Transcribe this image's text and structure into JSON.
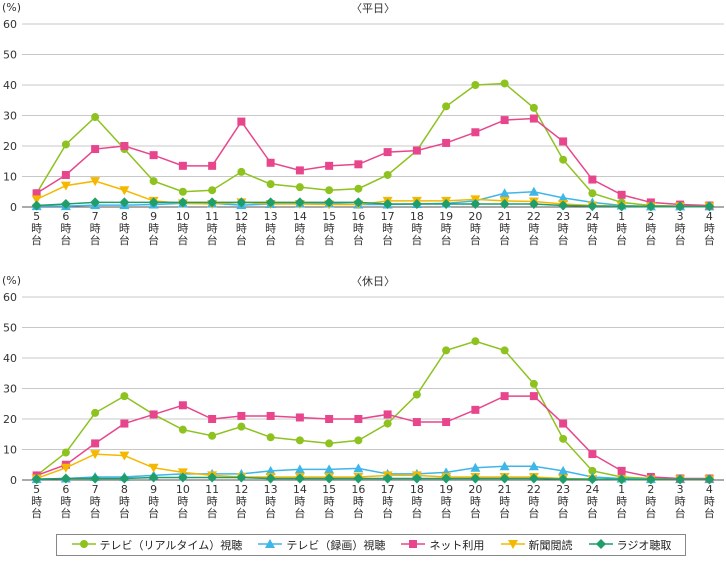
{
  "chart_data": [
    {
      "type": "line",
      "title": "〈平日〉",
      "ylabel": "(%)",
      "ylim": [
        0,
        60
      ],
      "yticks": [
        0,
        10,
        20,
        30,
        40,
        50,
        60
      ],
      "grid": true,
      "categories": [
        "5\n時\n台",
        "6\n時\n台",
        "7\n時\n台",
        "8\n時\n台",
        "9\n時\n台",
        "10\n時\n台",
        "11\n時\n台",
        "12\n時\n台",
        "13\n時\n台",
        "14\n時\n台",
        "15\n時\n台",
        "16\n時\n台",
        "17\n時\n台",
        "18\n時\n台",
        "19\n時\n台",
        "20\n時\n台",
        "21\n時\n台",
        "22\n時\n台",
        "23\n時\n台",
        "24\n時\n台",
        "1\n時\n台",
        "2\n時\n台",
        "3\n時\n台",
        "4\n時\n台"
      ],
      "series": [
        {
          "name": "テレビ（リアルタイム）視聴",
          "values": [
            4.5,
            20.5,
            29.5,
            19,
            8.5,
            5,
            5.5,
            11.5,
            7.5,
            6.5,
            5.5,
            6,
            10.5,
            18.5,
            33,
            40,
            40.5,
            32.5,
            15.5,
            4.5,
            1.5,
            0.5,
            0.3,
            0.3
          ]
        },
        {
          "name": "テレビ（録画）視聴",
          "values": [
            0.3,
            0.3,
            0.6,
            0.6,
            0.8,
            1.2,
            1.2,
            0.6,
            1,
            1.2,
            1.2,
            0.8,
            0.8,
            1,
            1.2,
            2,
            4.5,
            5,
            3,
            1.5,
            0.5,
            0.2,
            0.2,
            0.2
          ]
        },
        {
          "name": "ネット利用",
          "values": [
            4.5,
            10.5,
            19,
            20,
            17,
            13.5,
            13.5,
            28,
            14.5,
            12,
            13.5,
            14,
            18,
            18.5,
            21,
            24.5,
            28.5,
            29,
            21.5,
            9,
            4,
            1.5,
            0.8,
            0.5
          ]
        },
        {
          "name": "新聞閲読",
          "values": [
            2.5,
            7,
            8.5,
            5.5,
            2,
            1.2,
            1,
            1.5,
            1,
            1,
            0.8,
            0.8,
            2,
            2,
            2,
            2.5,
            2,
            1.8,
            1,
            0.5,
            0.3,
            0.2,
            0.2,
            0.2
          ]
        },
        {
          "name": "ラジオ聴取",
          "values": [
            0.5,
            1,
            1.5,
            1.5,
            1.5,
            1.5,
            1.5,
            1.5,
            1.5,
            1.5,
            1.5,
            1.5,
            1,
            1,
            1,
            1,
            1,
            1,
            0.5,
            0.3,
            0.2,
            0.2,
            0.2,
            0.2
          ]
        }
      ]
    },
    {
      "type": "line",
      "title": "〈休日〉",
      "ylabel": "(%)",
      "ylim": [
        0,
        60
      ],
      "yticks": [
        0,
        10,
        20,
        30,
        40,
        50,
        60
      ],
      "grid": true,
      "categories": [
        "5\n時\n台",
        "6\n時\n台",
        "7\n時\n台",
        "8\n時\n台",
        "9\n時\n台",
        "10\n時\n台",
        "11\n時\n台",
        "12\n時\n台",
        "13\n時\n台",
        "14\n時\n台",
        "15\n時\n台",
        "16\n時\n台",
        "17\n時\n台",
        "18\n時\n台",
        "19\n時\n台",
        "20\n時\n台",
        "21\n時\n台",
        "22\n時\n台",
        "23\n時\n台",
        "24\n時\n台",
        "1\n時\n台",
        "2\n時\n台",
        "3\n時\n台",
        "4\n時\n台"
      ],
      "series": [
        {
          "name": "テレビ（リアルタイム）視聴",
          "values": [
            1.5,
            9,
            22,
            27.5,
            21.5,
            16.5,
            14.5,
            17.5,
            14,
            13,
            12,
            13,
            18.5,
            28,
            42.5,
            45.5,
            42.5,
            31.5,
            13.5,
            3,
            1,
            0.5,
            0.3,
            0.3
          ]
        },
        {
          "name": "テレビ（録画）視聴",
          "values": [
            0.3,
            0.5,
            1,
            1,
            1.5,
            2,
            2,
            2,
            3,
            3.5,
            3.5,
            3.8,
            2,
            2,
            2.5,
            4,
            4.5,
            4.5,
            3,
            1,
            0.5,
            0.3,
            0.3,
            0.3
          ]
        },
        {
          "name": "ネット利用",
          "values": [
            1.5,
            5,
            12,
            18.5,
            21.5,
            24.5,
            20,
            21,
            21,
            20.5,
            20,
            20,
            21.5,
            19,
            19,
            23,
            27.5,
            27.5,
            18.5,
            8.5,
            3,
            1,
            0.5,
            0.5
          ]
        },
        {
          "name": "新聞閲読",
          "values": [
            0.5,
            4,
            8.5,
            8,
            4,
            2.5,
            1.5,
            1,
            1,
            1,
            1,
            1,
            1.5,
            1.5,
            1,
            1,
            1,
            1,
            0.5,
            0.3,
            0.2,
            0.2,
            0.2,
            0.2
          ]
        },
        {
          "name": "ラジオ聴取",
          "values": [
            0.3,
            0.5,
            0.5,
            0.5,
            0.8,
            0.8,
            0.8,
            0.8,
            0.5,
            0.5,
            0.5,
            0.5,
            0.5,
            0.5,
            0.5,
            0.5,
            0.5,
            0.5,
            0.3,
            0.3,
            0.2,
            0.2,
            0.2,
            0.2
          ]
        }
      ]
    }
  ],
  "series_styles": [
    {
      "color": "#8dc21f",
      "marker": "circle"
    },
    {
      "color": "#3fb6e8",
      "marker": "triangle-up"
    },
    {
      "color": "#e8468c",
      "marker": "square"
    },
    {
      "color": "#f5b800",
      "marker": "triangle-down"
    },
    {
      "color": "#1f9e6a",
      "marker": "diamond"
    }
  ],
  "legend": {
    "items": [
      "テレビ（リアルタイム）視聴",
      "テレビ（録画）視聴",
      "ネット利用",
      "新聞閲読",
      "ラジオ聴取"
    ]
  }
}
